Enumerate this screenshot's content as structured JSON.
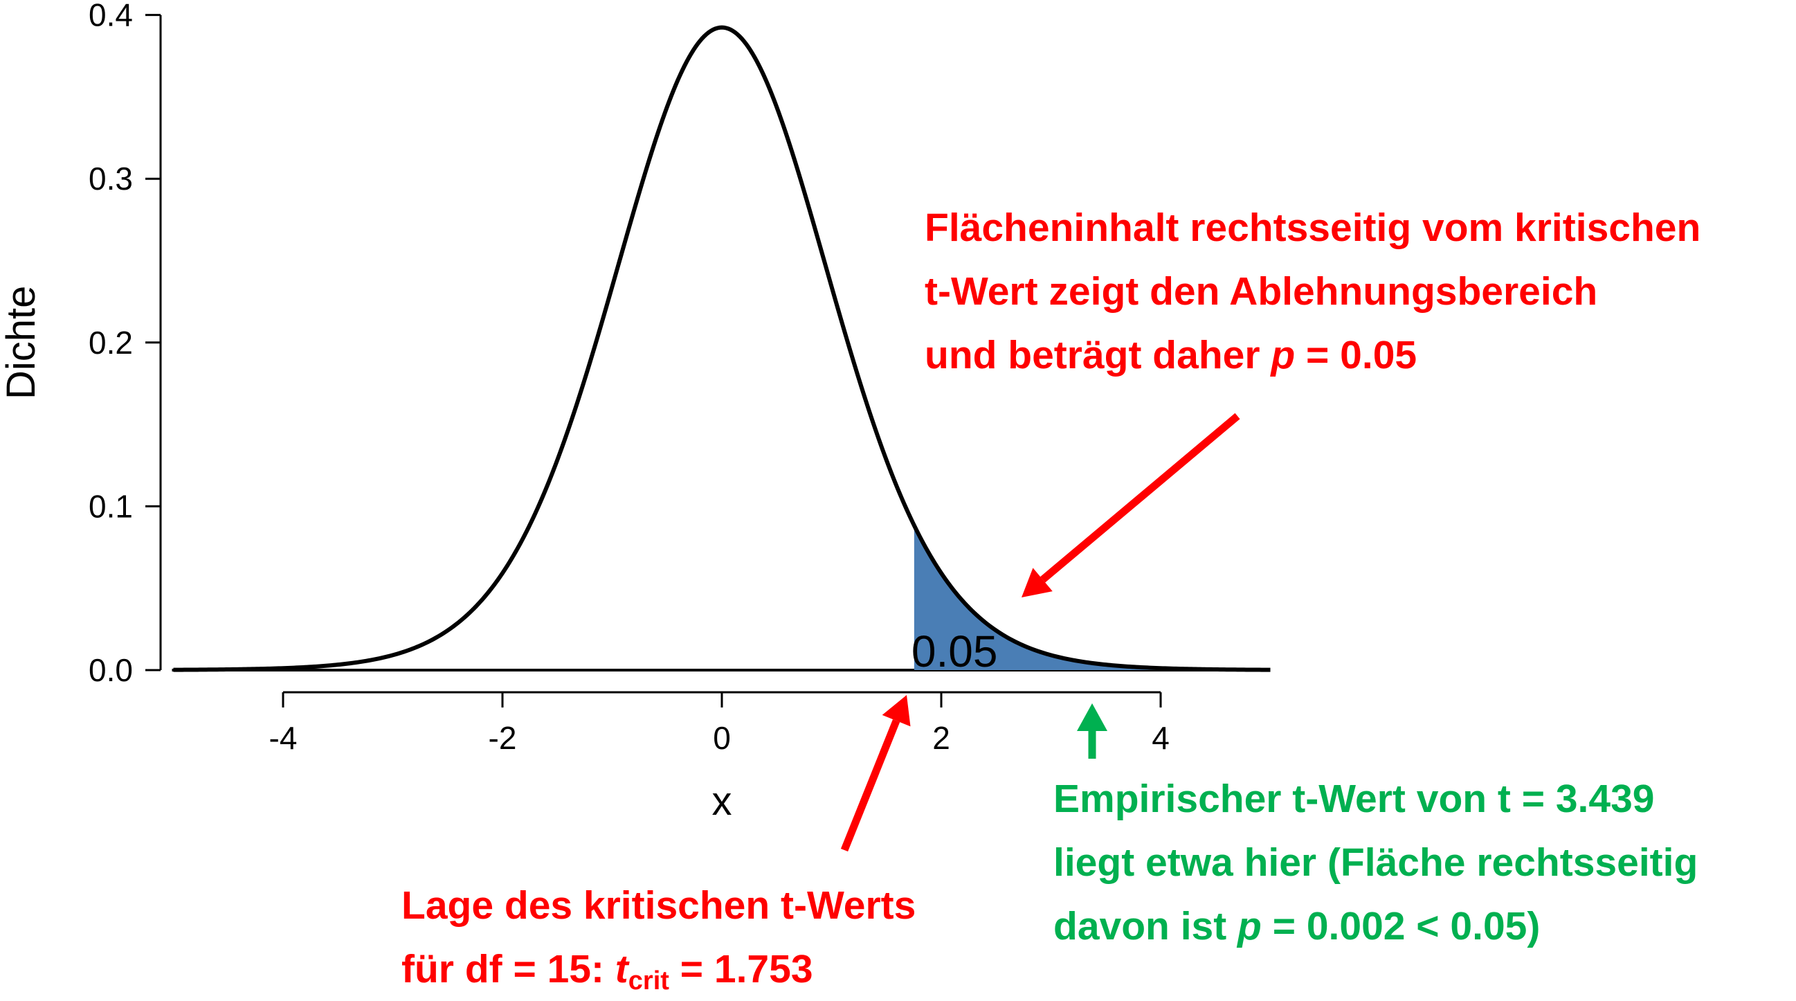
{
  "chart_data": {
    "type": "area",
    "xlabel": "x",
    "ylabel": "Dichte",
    "xlim": [
      -5,
      5
    ],
    "ylim": [
      0,
      0.4
    ],
    "x_ticks": [
      -4,
      -2,
      0,
      2,
      4
    ],
    "y_ticks": [
      0.0,
      0.1,
      0.2,
      0.3,
      0.4
    ],
    "y_tick_labels": [
      "0.0",
      "0.1",
      "0.2",
      "0.3",
      "0.4"
    ],
    "distribution": "t",
    "df": 15,
    "critical_t": 1.753,
    "shaded_region": {
      "from": 1.753,
      "to": 5,
      "color": "#4a7eb5"
    },
    "area_label": "0.05",
    "curve_color": "#000000",
    "grid": false,
    "series": [
      {
        "x": [
          -5,
          -4.5,
          -4,
          -3.5,
          -3,
          -2.5,
          -2,
          -1.5,
          -1,
          -0.5,
          0,
          0.5,
          1,
          1.5,
          2,
          2.5,
          3,
          3.5,
          4,
          4.5,
          5
        ],
        "values": [
          0.0002,
          0.0005,
          0.0014,
          0.0037,
          0.0094,
          0.0225,
          0.0544,
          0.1216,
          0.2357,
          0.3509,
          0.3925,
          0.3509,
          0.2357,
          0.1216,
          0.0544,
          0.0225,
          0.0094,
          0.0037,
          0.0014,
          0.0005,
          0.0002
        ]
      }
    ]
  },
  "annotations": {
    "area_note": {
      "line1": "Flächeninhalt rechtsseitig vom kritischen",
      "line2": "t-Wert zeigt den Ablehnungsbereich",
      "line3_prefix": "und beträgt daher ",
      "line3_p": "p",
      "line3_suffix": " = 0.05"
    },
    "critical_note": {
      "line1": "Lage des kritischen t-Werts",
      "line2_prefix": "für df = 15: ",
      "line2_t": "t",
      "line2_sub": "crit",
      "line2_suffix": " = 1.753"
    },
    "empirical_note": {
      "line1": "Empirischer t-Wert von t = 3.439",
      "line2": "liegt etwa hier (Fläche rechtsseitig",
      "line3_prefix": "davon ist ",
      "line3_p": "p",
      "line3_suffix": " = 0.002 < 0.05)"
    },
    "colors": {
      "red": "#ff0000",
      "green": "#00b050"
    }
  }
}
